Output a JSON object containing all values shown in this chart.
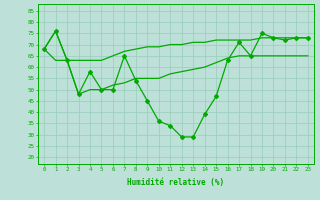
{
  "x": [
    0,
    1,
    2,
    3,
    4,
    5,
    6,
    7,
    8,
    9,
    10,
    11,
    12,
    13,
    14,
    15,
    16,
    17,
    18,
    19,
    20,
    21,
    22,
    23
  ],
  "y_volatile": [
    68,
    76,
    63,
    48,
    58,
    50,
    50,
    65,
    54,
    45,
    36,
    34,
    29,
    29,
    39,
    47,
    63,
    71,
    65,
    75,
    73,
    72,
    73,
    73
  ],
  "y_upper": [
    68,
    76,
    63,
    63,
    63,
    63,
    65,
    67,
    68,
    69,
    69,
    70,
    70,
    71,
    71,
    72,
    72,
    72,
    72,
    73,
    73,
    73,
    73,
    73
  ],
  "y_lower": [
    68,
    63,
    63,
    48,
    50,
    50,
    52,
    53,
    55,
    55,
    55,
    57,
    58,
    59,
    60,
    62,
    64,
    65,
    65,
    65,
    65,
    65,
    65,
    65
  ],
  "color": "#00aa00",
  "bg_color": "#bde0d8",
  "grid_color": "#99ccbb",
  "xlabel": "Humidité relative (%)",
  "ylim": [
    17,
    88
  ],
  "xlim": [
    -0.5,
    23.5
  ],
  "yticks": [
    20,
    25,
    30,
    35,
    40,
    45,
    50,
    55,
    60,
    65,
    70,
    75,
    80,
    85
  ],
  "xticks": [
    0,
    1,
    2,
    3,
    4,
    5,
    6,
    7,
    8,
    9,
    10,
    11,
    12,
    13,
    14,
    15,
    16,
    17,
    18,
    19,
    20,
    21,
    22,
    23
  ]
}
